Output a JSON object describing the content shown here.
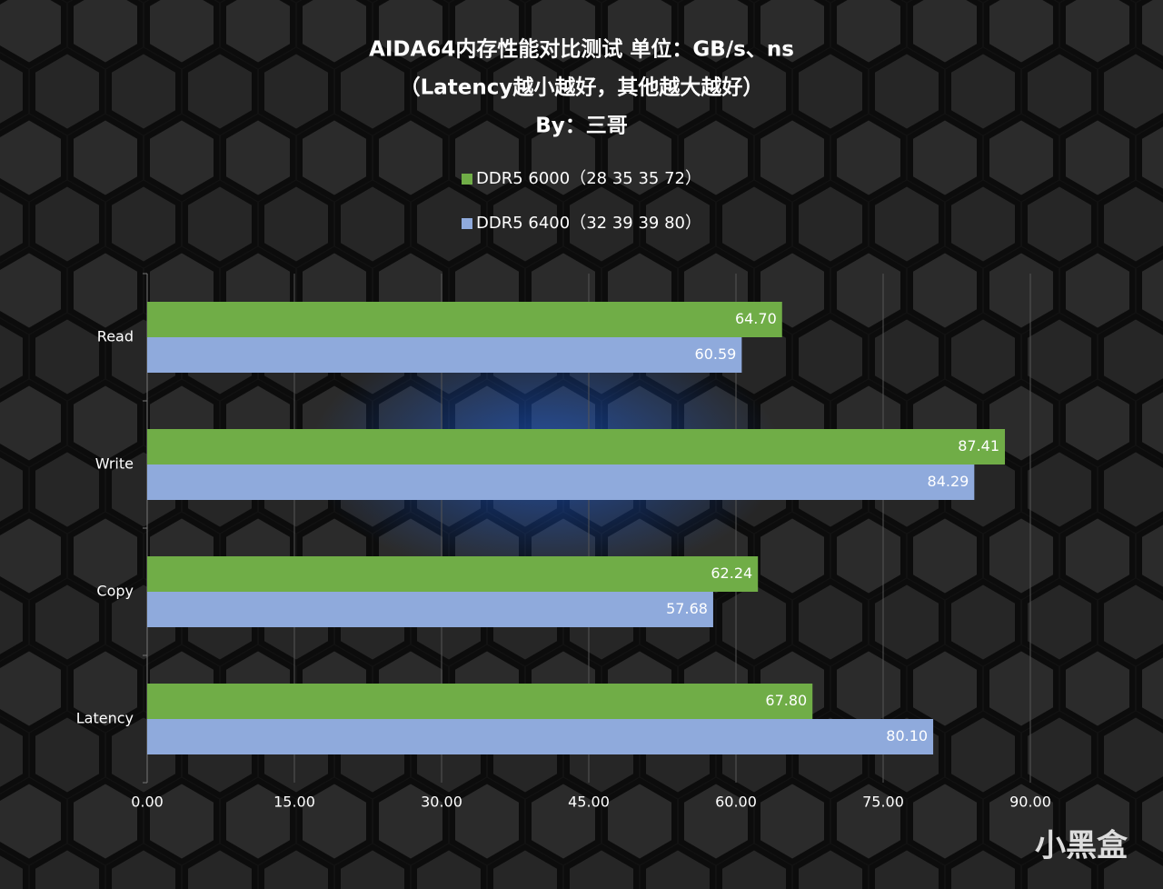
{
  "chart_data": {
    "type": "bar",
    "orientation": "horizontal",
    "title": "AIDA64内存性能对比测试 单位：GB/s、ns",
    "subtitle": "（Latency越小越好，其他越大越好）",
    "author": "By：三哥",
    "categories": [
      "Read",
      "Write",
      "Copy",
      "Latency"
    ],
    "series": [
      {
        "name": "DDR5 6000（28 35 35 72）",
        "color": "#70ad47",
        "values": [
          64.7,
          87.41,
          62.24,
          67.8
        ],
        "value_labels": [
          "64.70",
          "87.41",
          "62.24",
          "67.80"
        ]
      },
      {
        "name": "DDR5 6400（32 39 39 80）",
        "color": "#8faadc",
        "values": [
          60.59,
          84.29,
          57.68,
          80.1
        ],
        "value_labels": [
          "60.59",
          "84.29",
          "57.68",
          "80.10"
        ]
      }
    ],
    "xlim": [
      0,
      90
    ],
    "xticks": [
      {
        "value": 0,
        "label": "0.00"
      },
      {
        "value": 15,
        "label": "15.00"
      },
      {
        "value": 30,
        "label": "30.00"
      },
      {
        "value": 45,
        "label": "45.00"
      },
      {
        "value": 60,
        "label": "60.00"
      },
      {
        "value": 75,
        "label": "75.00"
      },
      {
        "value": 90,
        "label": "90.00"
      }
    ],
    "grid": true,
    "legend": "top",
    "watermark": "小黑盒"
  }
}
